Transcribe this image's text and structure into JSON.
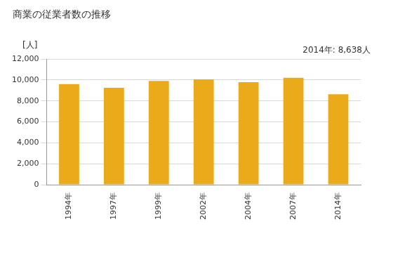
{
  "chart_data": {
    "type": "bar",
    "title": "商業の従業者数の推移",
    "ylabel": "[人]",
    "annotations": [
      "2014年: 8,638人"
    ],
    "categories": [
      "1994年",
      "1997年",
      "1999年",
      "2002年",
      "2004年",
      "2007年",
      "2014年"
    ],
    "values": [
      9600,
      9250,
      9900,
      10050,
      9780,
      10200,
      8638
    ],
    "color": "#eaaa1a",
    "ylim": [
      0,
      12000
    ],
    "yticks": [
      0,
      {
        "value": 2000,
        "label": "2,000"
      },
      {
        "value": 4000,
        "label": "4,000"
      },
      {
        "value": 6000,
        "label": "6,000"
      },
      {
        "value": 8000,
        "label": "8,000"
      },
      {
        "value": 10000,
        "label": "10,000"
      },
      {
        "value": 12000,
        "label": "12,000"
      }
    ],
    "grid": true
  }
}
